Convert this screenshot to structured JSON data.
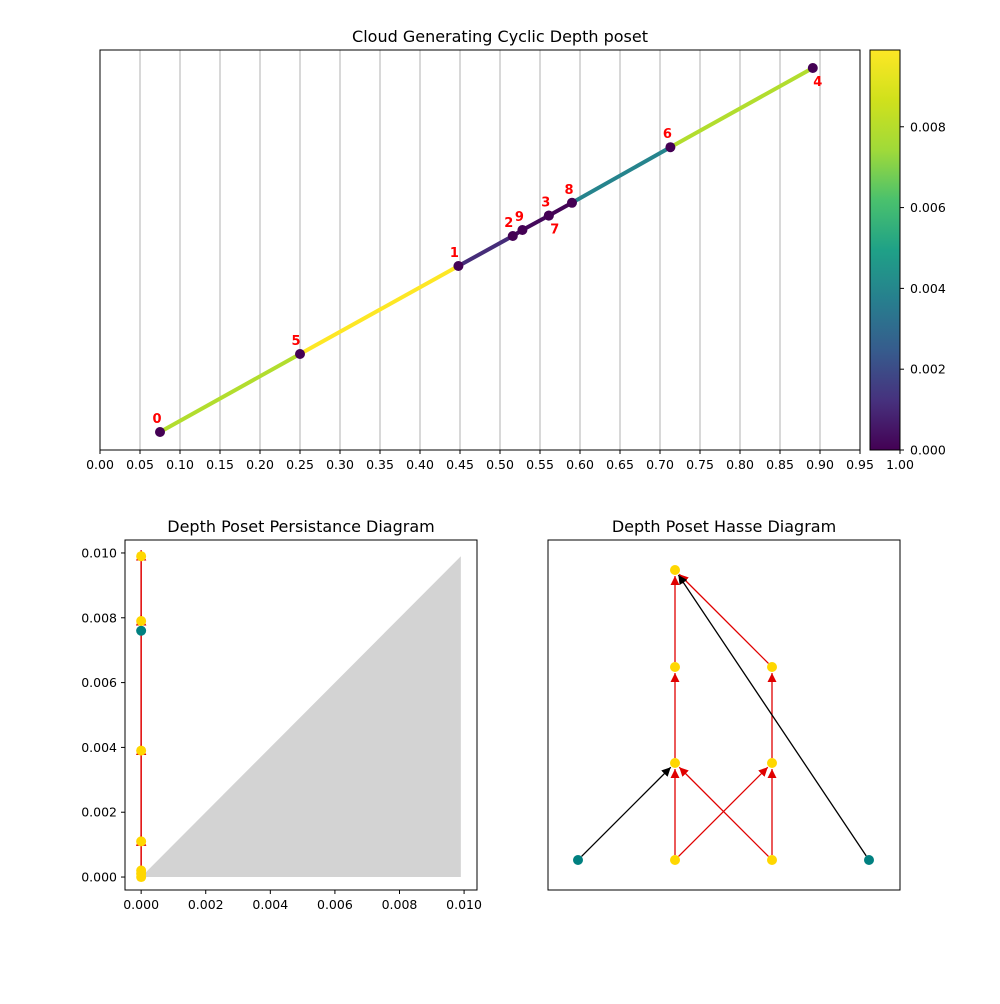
{
  "chart_data": [
    {
      "type": "line",
      "title": "Cloud Generating Cyclic Depth poset",
      "xlim": [
        0.0,
        1.0
      ],
      "x_ticks": [
        "0.00",
        "0.05",
        "0.10",
        "0.15",
        "0.20",
        "0.25",
        "0.30",
        "0.35",
        "0.40",
        "0.45",
        "0.50",
        "0.55",
        "0.60",
        "0.65",
        "0.70",
        "0.75",
        "0.80",
        "0.85",
        "0.90",
        "0.95",
        "1.00"
      ],
      "grid": "vertical",
      "colormap": "viridis",
      "colorbar": {
        "range": [
          0.0,
          0.0099
        ],
        "ticks": [
          "0.000",
          "0.002",
          "0.004",
          "0.006",
          "0.008"
        ]
      },
      "points": [
        {
          "label": "0",
          "x": 0.075,
          "y": 0.045
        },
        {
          "label": "5",
          "x": 0.25,
          "y": 0.24
        },
        {
          "label": "1",
          "x": 0.448,
          "y": 0.46
        },
        {
          "label": "2",
          "x": 0.516,
          "y": 0.535
        },
        {
          "label": "9",
          "x": 0.528,
          "y": 0.55
        },
        {
          "label": "3",
          "x": 0.561,
          "y": 0.586
        },
        {
          "label": "7",
          "x": 0.561,
          "y": 0.586
        },
        {
          "label": "8",
          "x": 0.59,
          "y": 0.618
        },
        {
          "label": "6",
          "x": 0.713,
          "y": 0.757
        },
        {
          "label": "4",
          "x": 0.891,
          "y": 0.955
        }
      ],
      "segments": [
        {
          "from": "0",
          "to": "5",
          "value": 0.0079
        },
        {
          "from": "5",
          "to": "1",
          "value": 0.0099
        },
        {
          "from": "1",
          "to": "2",
          "value": 0.0011
        },
        {
          "from": "2",
          "to": "9",
          "value": 0.0003
        },
        {
          "from": "9",
          "to": "3",
          "value": 0.0002
        },
        {
          "from": "3",
          "to": "8",
          "value": 0.0001
        },
        {
          "from": "8",
          "to": "6",
          "value": 0.0039
        },
        {
          "from": "6",
          "to": "4",
          "value": 0.0079
        }
      ]
    },
    {
      "type": "scatter",
      "title": "Depth Poset Persistance Diagram",
      "xlim": [
        -0.0005,
        0.0104
      ],
      "ylim": [
        -0.0004,
        0.0104
      ],
      "x_ticks": [
        0.0,
        0.002,
        0.004,
        0.006,
        0.008,
        0.01
      ],
      "y_ticks": [
        0.0,
        0.002,
        0.004,
        0.006,
        0.008,
        0.01
      ],
      "tick_labels": [
        "0.000",
        "0.002",
        "0.004",
        "0.006",
        "0.008",
        "0.010"
      ],
      "points": [
        {
          "x": 0.0,
          "y": 0.0,
          "color": "#ffd700"
        },
        {
          "x": 0.0,
          "y": 0.0001,
          "color": "#ffd700"
        },
        {
          "x": 0.0,
          "y": 0.0002,
          "color": "#ffd700"
        },
        {
          "x": 0.0,
          "y": 0.0011,
          "color": "#ffd700"
        },
        {
          "x": 0.0,
          "y": 0.0039,
          "color": "#ffd700"
        },
        {
          "x": 0.0,
          "y": 0.0076,
          "color": "#008080"
        },
        {
          "x": 0.0,
          "y": 0.0079,
          "color": "#ffd700"
        },
        {
          "x": 0.0,
          "y": 0.0099,
          "color": "#ffd700"
        }
      ],
      "arrows": [
        {
          "from": [
            0.0,
            0.0002
          ],
          "to": [
            0.0,
            0.0011
          ]
        },
        {
          "from": [
            0.0,
            0.0011
          ],
          "to": [
            0.0,
            0.0039
          ]
        },
        {
          "from": [
            0.0,
            0.0039
          ],
          "to": [
            0.0,
            0.0079
          ]
        },
        {
          "from": [
            0.0,
            0.0079
          ],
          "to": [
            0.0,
            0.0099
          ]
        }
      ],
      "diagonal_region": {
        "max": 0.0099,
        "color": "#d3d3d3"
      }
    },
    {
      "type": "graph",
      "title": "Depth Poset Hasse Diagram",
      "nodes": [
        {
          "id": "a",
          "color": "#008080"
        },
        {
          "id": "b",
          "color": "#ffd700"
        },
        {
          "id": "c",
          "color": "#ffd700"
        },
        {
          "id": "d",
          "color": "#008080"
        },
        {
          "id": "e",
          "color": "#ffd700"
        },
        {
          "id": "f",
          "color": "#ffd700"
        },
        {
          "id": "g",
          "color": "#ffd700"
        },
        {
          "id": "h",
          "color": "#ffd700"
        },
        {
          "id": "i",
          "color": "#ffd700"
        }
      ],
      "edges": [
        {
          "from": "a",
          "to": "e",
          "color": "#000000"
        },
        {
          "from": "b",
          "to": "e",
          "color": "#e00000"
        },
        {
          "from": "b",
          "to": "f",
          "color": "#e00000"
        },
        {
          "from": "c",
          "to": "f",
          "color": "#e00000"
        },
        {
          "from": "c",
          "to": "e",
          "color": "#e00000"
        },
        {
          "from": "e",
          "to": "g",
          "color": "#e00000"
        },
        {
          "from": "f",
          "to": "h",
          "color": "#e00000"
        },
        {
          "from": "g",
          "to": "i",
          "color": "#e00000"
        },
        {
          "from": "h",
          "to": "i",
          "color": "#e00000"
        },
        {
          "from": "d",
          "to": "i",
          "color": "#000000"
        }
      ]
    }
  ]
}
